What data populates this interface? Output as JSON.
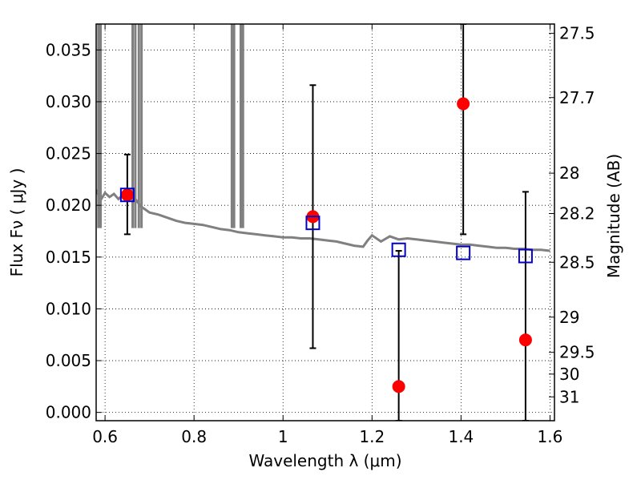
{
  "chart_data": {
    "type": "scatter",
    "xlabel": "Wavelength  λ (μm)",
    "ylabel": "Flux  Fν  ( μJy )",
    "y2label": "Magnitude (AB)",
    "xlim": [
      0.58,
      1.61
    ],
    "ylim": [
      -0.0008,
      0.0375
    ],
    "grid": true,
    "x_ticks": [
      0.6,
      0.8,
      1.0,
      1.2,
      1.4,
      1.6
    ],
    "x_tick_labels": [
      "0.6",
      "0.8",
      "1",
      "1.2",
      "1.4",
      "1.6"
    ],
    "y_ticks": [
      0.0,
      0.005,
      0.01,
      0.015,
      0.02,
      0.025,
      0.03,
      0.035
    ],
    "y_tick_labels": [
      "0.000",
      "0.005",
      "0.010",
      "0.015",
      "0.020",
      "0.025",
      "0.030",
      "0.035"
    ],
    "mag_ticks": [
      {
        "label": "27.5",
        "flux": 0.0366
      },
      {
        "label": "27.7",
        "flux": 0.0304
      },
      {
        "label": "28",
        "flux": 0.0231
      },
      {
        "label": "28.2",
        "flux": 0.0192
      },
      {
        "label": "28.5",
        "flux": 0.0145
      },
      {
        "label": "29",
        "flux": 0.0092
      },
      {
        "label": "29.5",
        "flux": 0.0058
      },
      {
        "label": "30",
        "flux": 0.0037
      },
      {
        "label": "31",
        "flux": 0.0015
      }
    ],
    "model_spectrum": {
      "color": "#808080",
      "x": [
        0.58,
        0.585,
        0.59,
        0.6,
        0.61,
        0.62,
        0.63,
        0.64,
        0.65,
        0.66,
        0.67,
        0.68,
        0.69,
        0.7,
        0.72,
        0.74,
        0.76,
        0.78,
        0.8,
        0.82,
        0.84,
        0.86,
        0.88,
        0.9,
        0.92,
        0.94,
        0.96,
        0.98,
        1.0,
        1.02,
        1.04,
        1.06,
        1.08,
        1.1,
        1.12,
        1.14,
        1.16,
        1.18,
        1.19,
        1.2,
        1.22,
        1.24,
        1.26,
        1.28,
        1.3,
        1.32,
        1.34,
        1.36,
        1.38,
        1.4,
        1.42,
        1.44,
        1.46,
        1.48,
        1.5,
        1.52,
        1.54,
        1.56,
        1.58,
        1.6
      ],
      "y": [
        0.0215,
        0.021,
        0.0205,
        0.0212,
        0.0208,
        0.0211,
        0.0206,
        0.021,
        0.0209,
        0.0208,
        0.0205,
        0.0199,
        0.0196,
        0.0193,
        0.0191,
        0.0188,
        0.0185,
        0.0183,
        0.0182,
        0.0181,
        0.0179,
        0.0177,
        0.0176,
        0.0174,
        0.0173,
        0.0172,
        0.0171,
        0.017,
        0.0169,
        0.0169,
        0.0168,
        0.0168,
        0.0167,
        0.0166,
        0.0165,
        0.0163,
        0.0161,
        0.016,
        0.0166,
        0.0171,
        0.0165,
        0.017,
        0.0167,
        0.0168,
        0.0167,
        0.0166,
        0.0165,
        0.0164,
        0.0163,
        0.0162,
        0.0162,
        0.0161,
        0.016,
        0.0159,
        0.0159,
        0.0158,
        0.0158,
        0.0157,
        0.0157,
        0.0156
      ],
      "spikes": [
        [
          0.585,
          0.59
        ],
        [
          0.662,
          0.668
        ],
        [
          0.676,
          0.682
        ],
        [
          0.885,
          0.89
        ],
        [
          0.905,
          0.91
        ]
      ]
    },
    "series": [
      {
        "marker": "circle",
        "color": "#ff0000",
        "points": [
          {
            "x": 0.65,
            "y": 0.021,
            "err_low": 0.0172,
            "err_high": 0.0249
          },
          {
            "x": 1.067,
            "y": 0.0189,
            "err_low": 0.0062,
            "err_high": 0.0316
          },
          {
            "x": 1.26,
            "y": 0.0025,
            "err_low": -0.0008,
            "err_high": 0.0156
          },
          {
            "x": 1.405,
            "y": 0.0298,
            "err_low": 0.0172,
            "err_high": 0.0375
          },
          {
            "x": 1.545,
            "y": 0.007,
            "err_low": -0.0008,
            "err_high": 0.0213
          }
        ]
      },
      {
        "marker": "square",
        "color": "#0000cc",
        "points": [
          {
            "x": 0.65,
            "y": 0.021
          },
          {
            "x": 1.067,
            "y": 0.0183
          },
          {
            "x": 1.26,
            "y": 0.0157
          },
          {
            "x": 1.405,
            "y": 0.0154
          },
          {
            "x": 1.545,
            "y": 0.0151
          }
        ]
      }
    ]
  }
}
